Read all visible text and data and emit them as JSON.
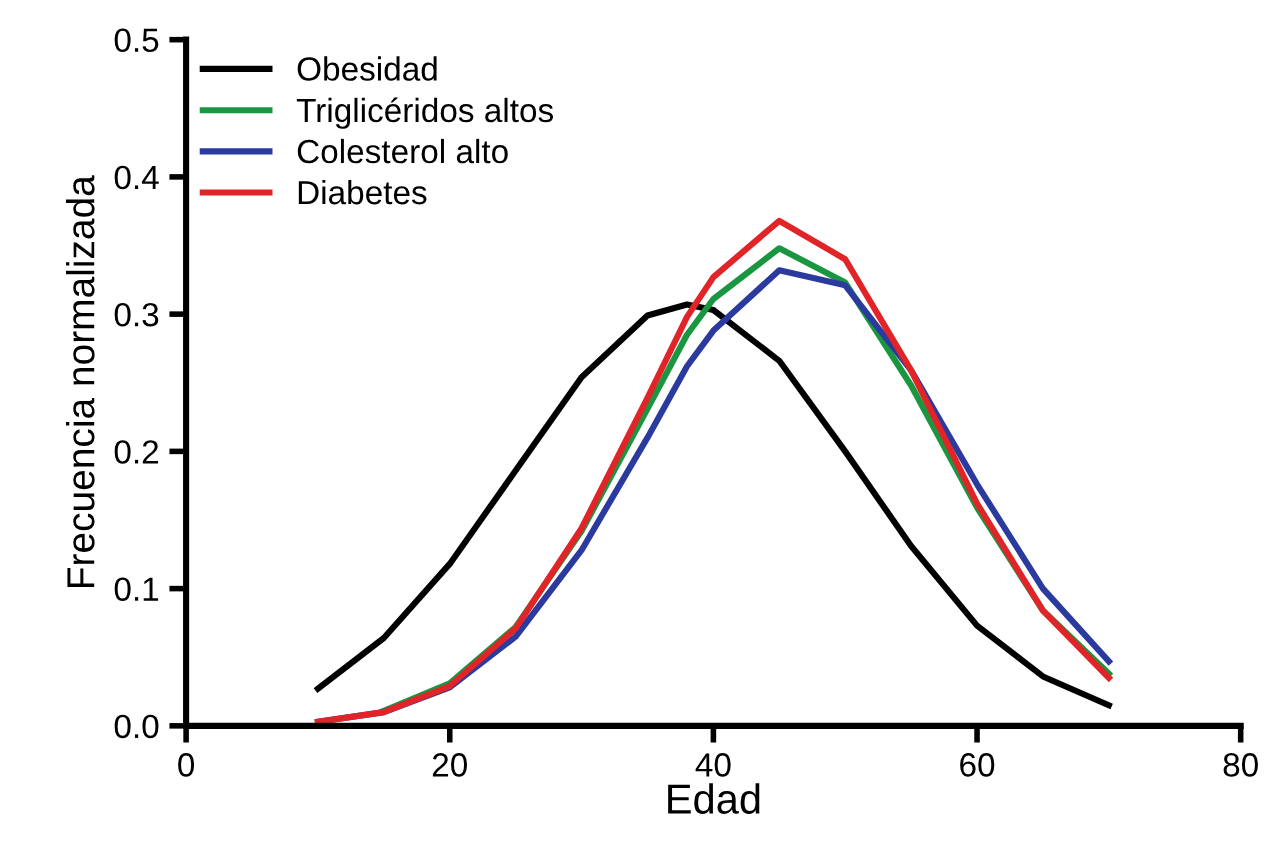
{
  "chart_data": {
    "type": "line",
    "xlabel": "Edad",
    "ylabel": "Frecuencia normalizada",
    "x": [
      10,
      15,
      20,
      25,
      30,
      35,
      38,
      40,
      45,
      50,
      55,
      60,
      65,
      70
    ],
    "series": [
      {
        "name": "Obesidad",
        "color": "#000000",
        "values": [
          0.027,
          0.064,
          0.118,
          0.186,
          0.254,
          0.299,
          0.307,
          0.303,
          0.266,
          0.2,
          0.131,
          0.073,
          0.036,
          0.015
        ]
      },
      {
        "name": "Triglicéridos altos",
        "color": "#1a9641",
        "values": [
          null,
          0.011,
          0.031,
          0.072,
          0.142,
          0.231,
          0.285,
          0.311,
          0.348,
          0.323,
          0.248,
          0.159,
          0.084,
          0.038
        ]
      },
      {
        "name": "Colesterol alto",
        "color": "#2b3a9e",
        "values": [
          0.003,
          0.01,
          0.028,
          0.065,
          0.128,
          0.21,
          0.262,
          0.288,
          0.332,
          0.321,
          0.259,
          0.176,
          0.1,
          0.047
        ]
      },
      {
        "name": "Diabetes",
        "color": "#e02428",
        "values": [
          0.003,
          0.01,
          0.029,
          0.071,
          0.144,
          0.239,
          0.298,
          0.327,
          0.368,
          0.34,
          0.259,
          0.162,
          0.084,
          0.035
        ]
      }
    ],
    "xlim": [
      0,
      80
    ],
    "xticks": [
      0,
      20,
      40,
      60,
      80
    ],
    "ylim": [
      0,
      0.5
    ],
    "yticks": [
      {
        "value": 0,
        "label": "0.0"
      },
      0.1,
      0.2,
      0.3,
      0.4,
      0.5
    ],
    "grid": false,
    "legend": "top left",
    "marker": "none",
    "line_style": "solid"
  }
}
